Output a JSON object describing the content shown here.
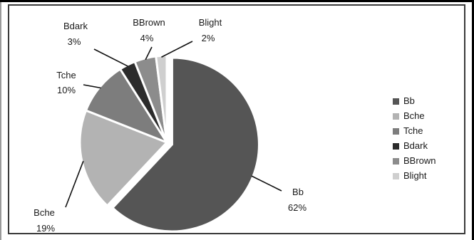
{
  "chart_data": {
    "type": "pie",
    "title": "",
    "categories": [
      "Bb",
      "Bche",
      "Tche",
      "Bdark",
      "BBrown",
      "Blight"
    ],
    "values": [
      62,
      19,
      10,
      3,
      4,
      2
    ],
    "value_labels": [
      "62%",
      "19%",
      "10%",
      "3%",
      "4%",
      "2%"
    ],
    "colors": [
      "#555555",
      "#b3b3b3",
      "#7d7d7d",
      "#2c2c2c",
      "#8c8c8c",
      "#cfcfcf"
    ],
    "exploded": [
      "Bb"
    ],
    "legend_position": "right",
    "grid": false
  }
}
